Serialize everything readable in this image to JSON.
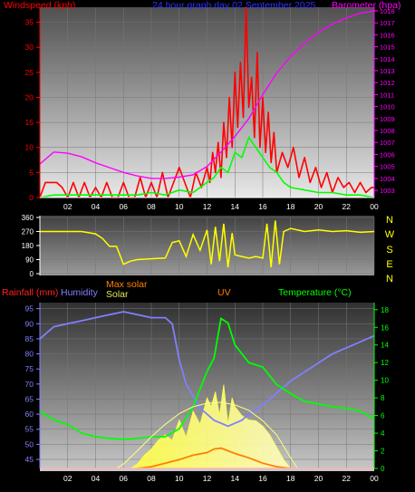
{
  "colors": {
    "wind": "#ff0000",
    "gust": "#00ff00",
    "baro": "#ff00ff",
    "title": "#3030ff",
    "dir": "#ffff00",
    "rain": "#ff2020",
    "humidity": "#8080ff",
    "solar": "#ffff40",
    "maxsolar": "#ff8000",
    "uv": "#ff8000",
    "temp": "#00ff00",
    "axis": "#ffffff"
  },
  "chart_data": [
    {
      "type": "area",
      "title": "24 hour graph day   02 September 2025",
      "ylabel_left": "Windspeed (kph)",
      "ylabel_right": "Barometer (hpa)",
      "x_ticks": [
        "02",
        "04",
        "06",
        "08",
        "10",
        "12",
        "14",
        "16",
        "18",
        "20",
        "22",
        "00"
      ],
      "ylim_left": [
        0,
        38
      ],
      "y_ticks_left": [
        0,
        5,
        10,
        15,
        20,
        25,
        30,
        35
      ],
      "ylim_right": [
        1002.4,
        1018.3
      ],
      "y_ticks_right": [
        1003,
        1004,
        1005,
        1006,
        1007,
        1008,
        1009,
        1010,
        1011,
        1012,
        1013,
        1014,
        1015,
        1016,
        1017,
        1018
      ],
      "series": [
        {
          "role": "wind",
          "x": [
            0,
            0.4,
            0.8,
            1.2,
            1.6,
            2,
            2.4,
            2.8,
            3.2,
            3.6,
            4,
            4.4,
            4.8,
            5.2,
            5.6,
            6,
            6.4,
            6.8,
            7.2,
            7.6,
            8,
            8.4,
            8.8,
            9.2,
            9.6,
            10,
            10.4,
            10.8,
            11.2,
            11.6,
            12,
            12.2,
            12.4,
            12.6,
            12.8,
            13,
            13.2,
            13.4,
            13.6,
            13.8,
            14,
            14.2,
            14.4,
            14.6,
            14.8,
            15,
            15.2,
            15.4,
            15.6,
            15.8,
            16,
            16.2,
            16.4,
            16.6,
            16.8,
            17,
            17.4,
            17.8,
            18.2,
            18.6,
            19,
            19.4,
            19.8,
            20.2,
            20.6,
            21,
            21.4,
            21.8,
            22.2,
            22.6,
            23,
            23.4,
            23.8,
            24
          ],
          "values": [
            0,
            3,
            3,
            3,
            2,
            0,
            3,
            0,
            3,
            0,
            2,
            0,
            3,
            0,
            0,
            3,
            0,
            0,
            4,
            0,
            3,
            0,
            5,
            0,
            3,
            6,
            3,
            0,
            5,
            2,
            6,
            3,
            9,
            5,
            11,
            4,
            15,
            8,
            20,
            10,
            25,
            14,
            27,
            16,
            38,
            18,
            24,
            12,
            29,
            10,
            20,
            9,
            17,
            7,
            13,
            5,
            9,
            6,
            10,
            4,
            8,
            3,
            6,
            2,
            5,
            1,
            4,
            2,
            3,
            1,
            3,
            1,
            2,
            2
          ],
          "min_label_values": []
        },
        {
          "role": "gust",
          "x": [
            0,
            1,
            2,
            3,
            4,
            5,
            6,
            7,
            8,
            9,
            10,
            11,
            12,
            12.5,
            13,
            13.5,
            14,
            14.5,
            15,
            15.5,
            16,
            16.5,
            17,
            17.5,
            18,
            19,
            20,
            21,
            22,
            23,
            24
          ],
          "values": [
            0,
            0.5,
            0.5,
            0.5,
            0.5,
            0.5,
            0.5,
            0.5,
            1,
            0.5,
            1.5,
            1,
            3,
            4,
            6,
            5,
            9,
            8,
            12,
            10,
            8,
            6,
            5,
            3,
            2,
            1.5,
            1,
            1,
            0.5,
            0.5,
            0
          ]
        },
        {
          "role": "baro",
          "x": [
            0,
            1,
            2,
            3,
            4,
            5,
            6,
            7,
            8,
            9,
            10,
            11,
            12,
            13,
            14,
            15,
            16,
            17,
            18,
            19,
            20,
            21,
            22,
            23,
            24
          ],
          "values": [
            1005.2,
            1006.2,
            1006.1,
            1005.8,
            1005.3,
            1004.9,
            1004.5,
            1004.2,
            1004.0,
            1004.0,
            1004.1,
            1004.3,
            1005.0,
            1006.2,
            1007.5,
            1009.0,
            1011.0,
            1012.8,
            1014.2,
            1015.3,
            1016.2,
            1016.9,
            1017.4,
            1017.8,
            1018.0
          ]
        }
      ]
    },
    {
      "type": "line",
      "ylabel_right": [
        "N",
        "W",
        "S",
        "E",
        "N"
      ],
      "ylim": [
        0,
        360
      ],
      "y_ticks": [
        0,
        90,
        180,
        270,
        360
      ],
      "x": [
        0,
        1,
        2,
        3,
        4,
        4.5,
        5,
        5.5,
        6,
        6.5,
        7,
        8,
        9,
        9.5,
        10,
        10.5,
        11,
        11.5,
        12,
        12.3,
        12.6,
        12.9,
        13.2,
        13.5,
        13.8,
        14,
        14.5,
        15,
        15.5,
        16,
        16.3,
        16.6,
        16.9,
        17.2,
        17.5,
        18,
        19,
        20,
        21,
        22,
        23,
        24
      ],
      "values": [
        270,
        270,
        270,
        270,
        255,
        225,
        175,
        175,
        60,
        80,
        90,
        95,
        100,
        200,
        210,
        110,
        250,
        150,
        280,
        60,
        300,
        80,
        320,
        40,
        260,
        120,
        110,
        100,
        110,
        100,
        320,
        40,
        340,
        60,
        270,
        290,
        270,
        280,
        270,
        275,
        265,
        270
      ]
    },
    {
      "type": "line",
      "ylabel_left": "Rainfall (mm)",
      "legend": [
        "Humidity",
        "Max solar",
        "Solar",
        "UV",
        "Temperature (°C)"
      ],
      "x_ticks": [
        "02",
        "04",
        "06",
        "08",
        "10",
        "12",
        "14",
        "16",
        "18",
        "20",
        "22",
        "00"
      ],
      "ylim_left": [
        42,
        97
      ],
      "y_ticks_left": [
        45,
        50,
        55,
        60,
        65,
        70,
        75,
        80,
        85,
        90,
        95
      ],
      "ylim_right": [
        0,
        18.8
      ],
      "y_ticks_right": [
        0,
        2,
        4,
        6,
        8,
        10,
        12,
        14,
        16,
        18
      ],
      "series": [
        {
          "role": "humidity",
          "x": [
            0,
            1,
            2,
            3,
            4,
            5,
            6,
            7,
            8,
            9,
            9.5,
            10,
            10.5,
            11,
            11.5,
            12,
            12.5,
            13,
            13.5,
            14,
            14.5,
            15,
            16,
            17,
            18,
            19,
            20,
            21,
            22,
            23,
            24
          ],
          "values": [
            85,
            89,
            90,
            91,
            92,
            93,
            94,
            93,
            92,
            92,
            90,
            78,
            70,
            66,
            62,
            60,
            58,
            57,
            56,
            57,
            58,
            60,
            63,
            67,
            71,
            74,
            77,
            80,
            82,
            84,
            86
          ]
        },
        {
          "role": "temperature",
          "x": [
            0,
            1,
            2,
            3,
            4,
            5,
            6,
            7,
            8,
            9,
            10,
            11,
            12,
            12.5,
            13,
            13.5,
            14,
            15,
            16,
            17,
            18,
            19,
            20,
            21,
            22,
            23,
            24
          ],
          "values": [
            6.5,
            5.5,
            5,
            4,
            3.6,
            3.4,
            3.3,
            3.4,
            3.6,
            3.6,
            4.5,
            7,
            11,
            12.5,
            17,
            16.5,
            14,
            12,
            11.5,
            9.5,
            8.5,
            7.6,
            7.3,
            7,
            6.8,
            6.5,
            5.6
          ]
        },
        {
          "role": "maxsolar",
          "x": [
            5.5,
            6,
            7,
            8,
            9,
            10,
            11,
            12,
            13,
            14,
            15,
            16,
            17,
            18,
            18.5
          ],
          "values": [
            0,
            0.5,
            2,
            3.6,
            5,
            6.2,
            7,
            7.4,
            7.5,
            7.2,
            6.6,
            5.4,
            3.8,
            1.2,
            0
          ]
        },
        {
          "role": "solar",
          "x": [
            6.5,
            7,
            7.5,
            8,
            8.5,
            9,
            9.5,
            10,
            10.5,
            11,
            11.5,
            12,
            12.3,
            12.6,
            12.9,
            13.2,
            13.5,
            13.8,
            14,
            14.5,
            15,
            15.5,
            16,
            16.5,
            17,
            17.5,
            18
          ],
          "values": [
            0,
            0.5,
            1.5,
            2.2,
            3.2,
            3.8,
            3.2,
            5.5,
            3.5,
            6.5,
            5,
            8,
            7,
            8.7,
            6,
            9.5,
            5,
            8,
            7,
            6,
            5.5,
            5.4,
            4.8,
            3.8,
            2.4,
            1,
            0
          ]
        },
        {
          "role": "uv",
          "x": [
            7,
            8,
            9,
            10,
            11,
            12,
            12.5,
            13,
            13.5,
            14,
            15,
            16,
            17,
            18
          ],
          "values": [
            0,
            0.2,
            0.6,
            1,
            1.5,
            1.8,
            2.2,
            2.3,
            2,
            1.7,
            1.2,
            0.6,
            0.2,
            0
          ]
        },
        {
          "role": "rain",
          "x": [
            0,
            24
          ],
          "values": [
            0,
            0
          ]
        }
      ]
    }
  ]
}
